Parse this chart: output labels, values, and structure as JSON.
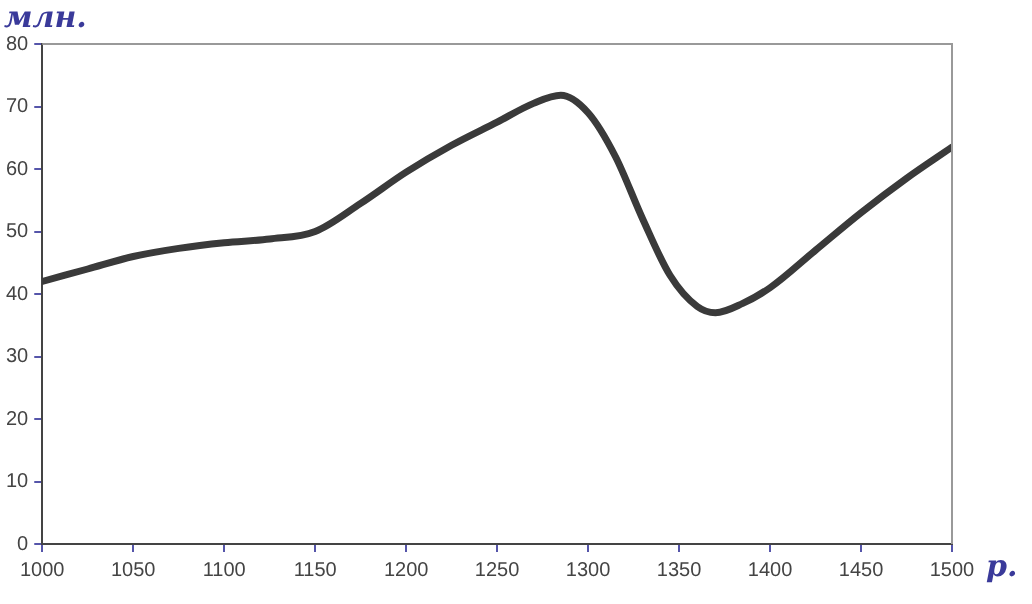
{
  "chart_data": {
    "type": "line",
    "xlabel": "р.",
    "ylabel": "млн.",
    "x": [
      1000,
      1025,
      1050,
      1075,
      1100,
      1125,
      1150,
      1175,
      1200,
      1225,
      1250,
      1270,
      1285,
      1300,
      1315,
      1330,
      1345,
      1360,
      1370,
      1385,
      1400,
      1425,
      1450,
      1475,
      1500
    ],
    "series": [
      {
        "color": "#3a3a3a",
        "values": [
          42,
          44,
          46,
          47.3,
          48.2,
          48.8,
          50,
          54.5,
          59.5,
          63.8,
          67.5,
          70.5,
          71.8,
          69,
          62,
          52,
          43,
          38,
          37,
          38.5,
          41,
          47,
          53,
          58.5,
          63.5
        ]
      }
    ],
    "xlim": [
      1000,
      1500
    ],
    "xticks": [
      1000,
      1050,
      1100,
      1150,
      1200,
      1250,
      1300,
      1350,
      1400,
      1450,
      1500
    ],
    "ylim": [
      0,
      80
    ],
    "yticks": [
      0,
      10,
      20,
      30,
      40,
      50,
      60,
      70,
      80
    ],
    "grid": false,
    "legend": false,
    "marker": "none",
    "line_style": "solid"
  }
}
